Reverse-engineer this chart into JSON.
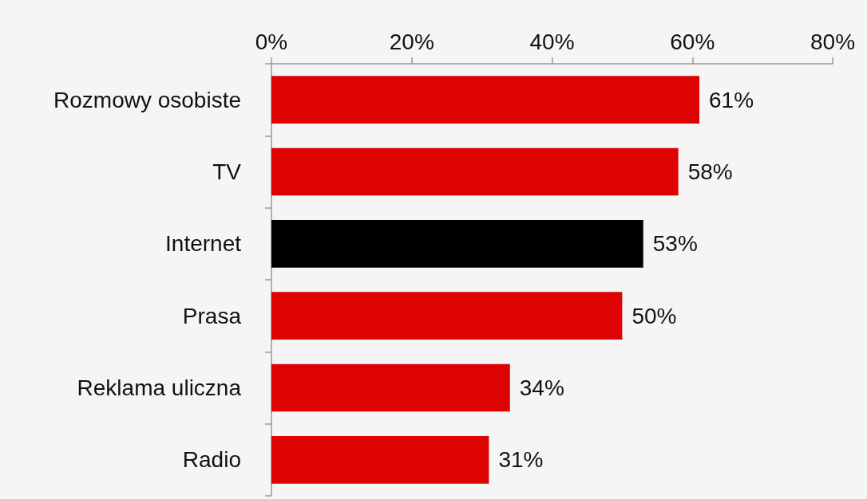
{
  "chart_data": {
    "type": "bar",
    "orientation": "horizontal",
    "categories": [
      "Rozmowy osobiste",
      "TV",
      "Internet",
      "Prasa",
      "Reklama uliczna",
      "Radio"
    ],
    "values": [
      61,
      58,
      53,
      50,
      34,
      31
    ],
    "colors": [
      "#dd0303",
      "#dd0303",
      "#000000",
      "#dd0303",
      "#dd0303",
      "#dd0303"
    ],
    "value_labels": [
      "61%",
      "58%",
      "53%",
      "50%",
      "34%",
      "31%"
    ],
    "xlim": [
      0,
      80
    ],
    "xticks": [
      {
        "value": 0,
        "label": "0%"
      },
      {
        "value": 20,
        "label": "20%"
      },
      {
        "value": 40,
        "label": "40%"
      },
      {
        "value": 60,
        "label": "60%"
      },
      {
        "value": 80,
        "label": "80%"
      }
    ],
    "grid": false
  }
}
